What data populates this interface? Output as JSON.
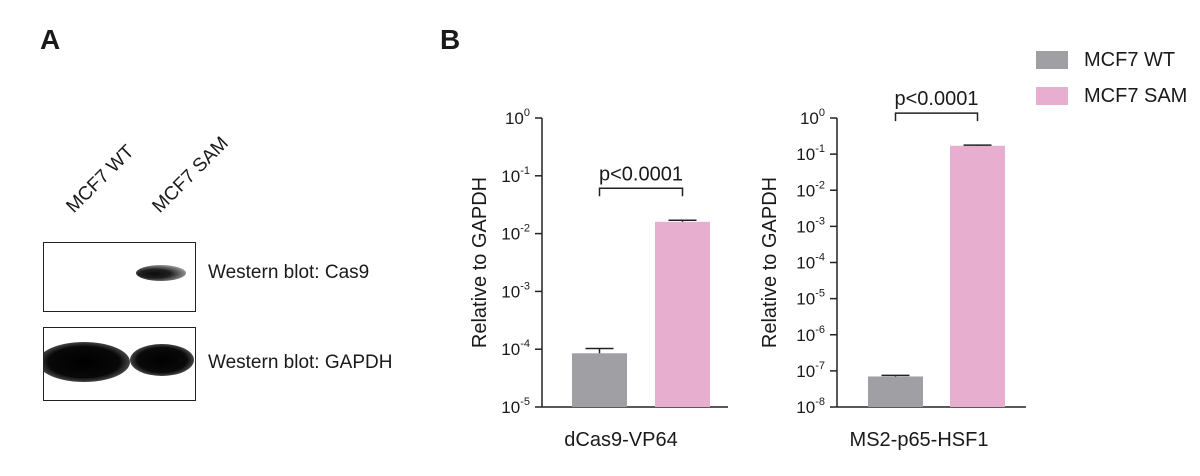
{
  "panels": {
    "a": {
      "letter": "A"
    },
    "b": {
      "letter": "B"
    }
  },
  "western_blot": {
    "lanes": [
      "MCF7 WT",
      "MCF7 SAM"
    ],
    "rows": [
      {
        "label": "Western blot: Cas9"
      },
      {
        "label": "Western blot: GAPDH"
      }
    ]
  },
  "legend": {
    "items": [
      {
        "label": "MCF7 WT",
        "color": "#a0a0a4"
      },
      {
        "label": "MCF7 SAM",
        "color": "#e8aed0"
      }
    ]
  },
  "chart_data": [
    {
      "type": "bar",
      "scale": "log",
      "ylabel": "Relative to GAPDH",
      "xlabel": "dCas9-VP64",
      "ylim": [
        1e-05,
        1
      ],
      "ticks": [
        {
          "base": "10",
          "exp": "0"
        },
        {
          "base": "10",
          "exp": "-1"
        },
        {
          "base": "10",
          "exp": "-2"
        },
        {
          "base": "10",
          "exp": "-3"
        },
        {
          "base": "10",
          "exp": "-4"
        },
        {
          "base": "10",
          "exp": "-5"
        }
      ],
      "series": [
        {
          "name": "MCF7 WT",
          "value": 8.5e-05,
          "error": 1.8e-05
        },
        {
          "name": "MCF7 SAM",
          "value": 0.016,
          "error": 0.001
        }
      ],
      "annotation": "p<0.0001"
    },
    {
      "type": "bar",
      "scale": "log",
      "ylabel": "Relative to GAPDH",
      "xlabel": "MS2-p65-HSF1",
      "ylim": [
        1e-08,
        1
      ],
      "ticks": [
        {
          "base": "10",
          "exp": "0"
        },
        {
          "base": "10",
          "exp": "-1"
        },
        {
          "base": "10",
          "exp": "-2"
        },
        {
          "base": "10",
          "exp": "-3"
        },
        {
          "base": "10",
          "exp": "-4"
        },
        {
          "base": "10",
          "exp": "-5"
        },
        {
          "base": "10",
          "exp": "-6"
        },
        {
          "base": "10",
          "exp": "-7"
        },
        {
          "base": "10",
          "exp": "-8"
        }
      ],
      "series": [
        {
          "name": "MCF7 WT",
          "value": 7e-08,
          "error": 5e-09
        },
        {
          "name": "MCF7 SAM",
          "value": 0.17,
          "error": 0.008
        }
      ],
      "annotation": "p<0.0001"
    }
  ]
}
